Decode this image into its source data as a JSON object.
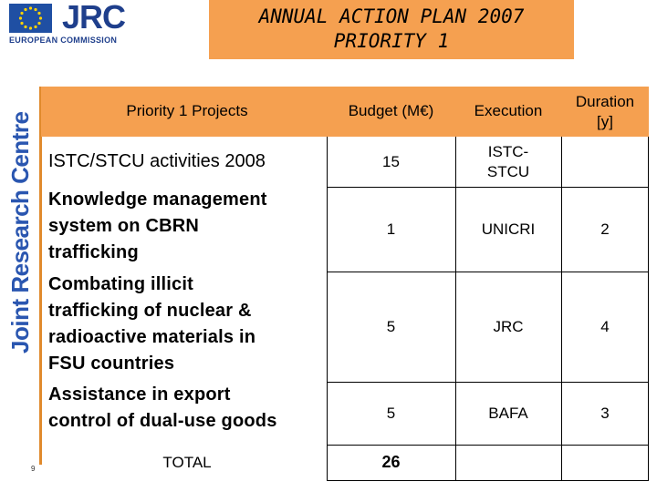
{
  "logo": {
    "org": "JRC",
    "subtitle": "EUROPEAN COMMISSION",
    "side_text": "Joint Research Centre"
  },
  "title": {
    "line1": "ANNUAL ACTION PLAN 2007",
    "line2": "PRIORITY 1"
  },
  "colors": {
    "accent": "#f5a050",
    "brand_blue": "#1f3f8c"
  },
  "table": {
    "headers": {
      "projects": "Priority 1 Projects",
      "budget": "Budget (M€)",
      "execution": "Execution",
      "duration_1": "Duration",
      "duration_2": "[y]"
    },
    "rows": [
      {
        "project": [
          "ISTC/STCU activities 2008"
        ],
        "budget": "15",
        "execution": [
          "ISTC-",
          "STCU"
        ],
        "duration": ""
      },
      {
        "project": [
          "Knowledge management",
          "system on CBRN",
          "trafficking"
        ],
        "budget": "1",
        "execution": [
          "UNICRI"
        ],
        "duration": "2"
      },
      {
        "project": [
          "Combating illicit",
          "trafficking of nuclear &",
          "radioactive materials in",
          "FSU countries"
        ],
        "budget": "5",
        "execution": [
          "JRC"
        ],
        "duration": "4"
      },
      {
        "project": [
          "Assistance in export",
          "control of dual-use goods"
        ],
        "budget": "5",
        "execution": [
          "BAFA"
        ],
        "duration": "3"
      }
    ],
    "total": {
      "label": "TOTAL",
      "budget": "26"
    }
  },
  "page_number": "9"
}
